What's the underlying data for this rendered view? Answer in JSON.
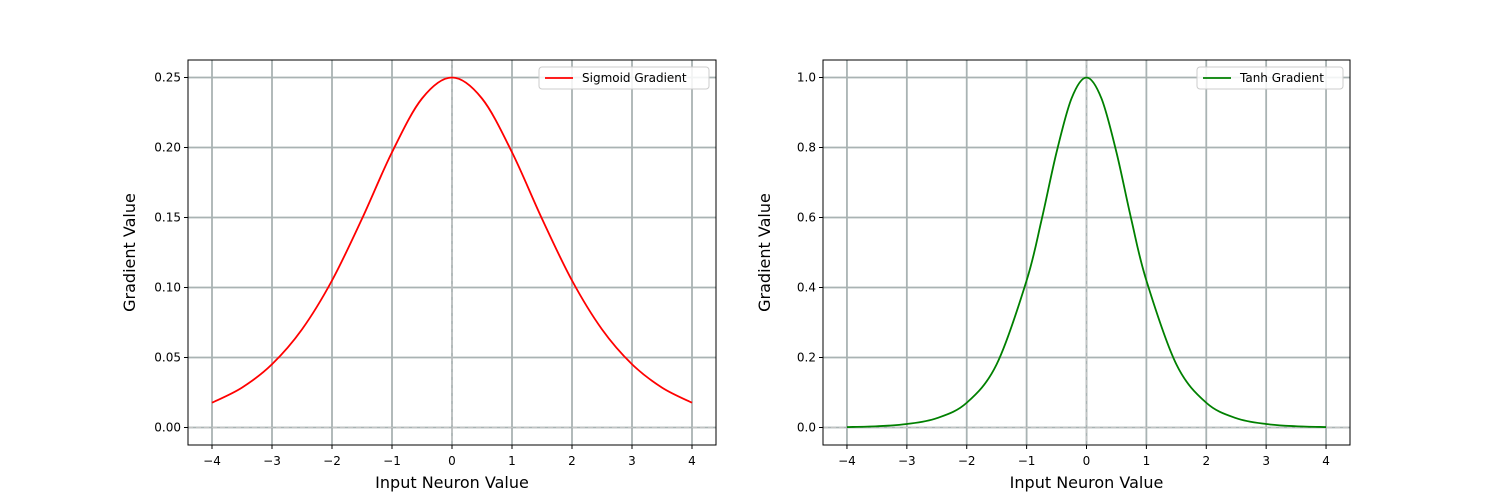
{
  "chart_data": [
    {
      "type": "line",
      "title": "",
      "xlabel": "Input Neuron Value",
      "ylabel": "Gradient Value",
      "xlim": [
        -4.4,
        4.4
      ],
      "ylim": [
        -0.0125,
        0.2625
      ],
      "xticks": [
        -4,
        -3,
        -2,
        -1,
        0,
        1,
        2,
        3,
        4
      ],
      "yticks": [
        0.0,
        0.05,
        0.1,
        0.15,
        0.2,
        0.25
      ],
      "ytick_labels": [
        "0.00",
        "0.05",
        "0.10",
        "0.15",
        "0.20",
        "0.25"
      ],
      "grid": true,
      "legend": "top-right",
      "series": [
        {
          "name": "Sigmoid Gradient",
          "color": "#ff0000",
          "x": [
            -4,
            -3.5,
            -3,
            -2.5,
            -2,
            -1.5,
            -1,
            -0.5,
            0,
            0.5,
            1,
            1.5,
            2,
            2.5,
            3,
            3.5,
            4
          ],
          "y": [
            0.0177,
            0.0285,
            0.0452,
            0.0701,
            0.105,
            0.1491,
            0.1966,
            0.235,
            0.25,
            0.235,
            0.1966,
            0.1491,
            0.105,
            0.0701,
            0.0452,
            0.0285,
            0.0177
          ]
        }
      ]
    },
    {
      "type": "line",
      "title": "",
      "xlabel": "Input Neuron Value",
      "ylabel": "Gradient Value",
      "xlim": [
        -4.4,
        4.4
      ],
      "ylim": [
        -0.05,
        1.05
      ],
      "xticks": [
        -4,
        -3,
        -2,
        -1,
        0,
        1,
        2,
        3,
        4
      ],
      "yticks": [
        0.0,
        0.2,
        0.4,
        0.6,
        0.8,
        1.0
      ],
      "ytick_labels": [
        "0.0",
        "0.2",
        "0.4",
        "0.6",
        "0.8",
        "1.0"
      ],
      "grid": true,
      "legend": "top-right",
      "series": [
        {
          "name": "Tanh Gradient",
          "color": "#008000",
          "x": [
            -4,
            -3.5,
            -3,
            -2.5,
            -2,
            -1.5,
            -1,
            -0.75,
            -0.5,
            -0.25,
            0,
            0.25,
            0.5,
            0.75,
            1,
            1.5,
            2,
            2.5,
            3,
            3.5,
            4
          ],
          "y": [
            0.0013,
            0.0036,
            0.0099,
            0.0266,
            0.0707,
            0.1807,
            0.42,
            0.5932,
            0.7864,
            0.9401,
            1.0,
            0.9401,
            0.7864,
            0.5932,
            0.42,
            0.1807,
            0.0707,
            0.0266,
            0.0099,
            0.0036,
            0.0013
          ]
        }
      ]
    }
  ],
  "x_tick_labels": [
    "−4",
    "−3",
    "−2",
    "−1",
    "0",
    "1",
    "2",
    "3",
    "4"
  ]
}
